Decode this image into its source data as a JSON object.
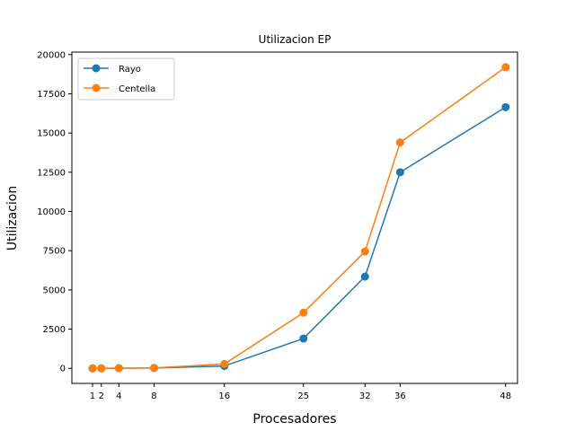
{
  "chart_data": {
    "type": "line",
    "title": "Utilizacion EP",
    "xlabel": "Procesadores",
    "ylabel": "Utilizacion",
    "x": [
      1,
      2,
      4,
      8,
      16,
      25,
      32,
      36,
      48
    ],
    "xticks": [
      1,
      2,
      4,
      8,
      16,
      25,
      32,
      36,
      48
    ],
    "yticks": [
      0,
      2500,
      5000,
      7500,
      10000,
      12500,
      15000,
      17500,
      20000
    ],
    "xlim": [
      -1.35,
      49.35
    ],
    "ylim": [
      -960,
      20160
    ],
    "grid": false,
    "legend_position": "top-left",
    "series": [
      {
        "name": "Rayo",
        "color": "#1f77b4",
        "values": [
          0,
          0,
          10,
          20,
          150,
          1900,
          5850,
          12500,
          16650
        ]
      },
      {
        "name": "Centella",
        "color": "#ff7f0e",
        "values": [
          0,
          0,
          15,
          30,
          280,
          3550,
          7450,
          14400,
          19200
        ]
      }
    ]
  }
}
